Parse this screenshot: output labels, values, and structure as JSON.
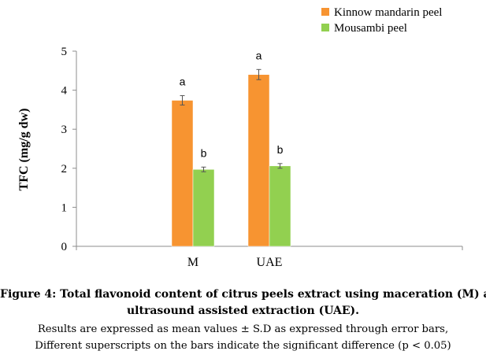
{
  "chart_data": {
    "type": "bar",
    "categories": [
      "M",
      "UAE"
    ],
    "series": [
      {
        "name": "Kinnow mandarin peel",
        "color": "#F79431",
        "values": [
          3.74,
          4.4
        ],
        "errors": [
          0.12,
          0.13
        ],
        "labels": [
          "a",
          "a"
        ]
      },
      {
        "name": "Mousambi peel",
        "color": "#92D050",
        "values": [
          1.97,
          2.06
        ],
        "errors": [
          0.06,
          0.06
        ],
        "labels": [
          "b",
          "b"
        ]
      }
    ],
    "xlabel": "",
    "ylabel": "TFC (mg/g dw)",
    "ylim": [
      0,
      5
    ],
    "yticks": [
      "0",
      "1",
      "2",
      "3",
      "4",
      "5"
    ],
    "grid": false,
    "legend_position": "top-right"
  },
  "caption": {
    "title_line1": "Figure 4: Total flavonoid content of citrus peels extract using maceration (M) and",
    "title_line2": "ultrasound assisted extraction (UAE).",
    "note_line1": "Results are expressed as mean values ± S.D as expressed through error bars,",
    "note_line2": "Different superscripts on the bars indicate the significant difference (p < 0.05)"
  }
}
